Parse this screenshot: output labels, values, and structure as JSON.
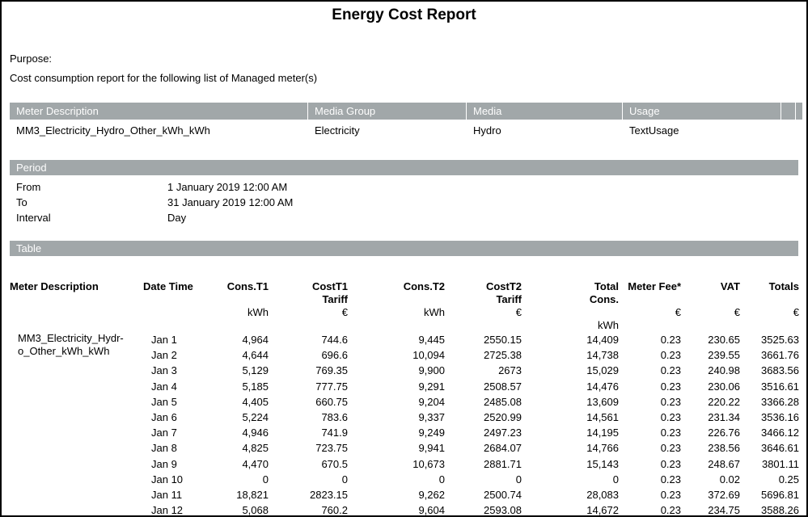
{
  "page": {
    "title": "Energy Cost Report"
  },
  "purpose": {
    "label": "Purpose:",
    "text": "Cost consumption report for the following list of Managed meter(s)"
  },
  "meters": {
    "columns": [
      "Meter Description",
      "Media Group",
      "Media",
      "Usage"
    ],
    "row": {
      "description": "MM3_Electricity_Hydro_Other_kWh_kWh",
      "media_group": "Electricity",
      "media": "Hydro",
      "usage": "TextUsage"
    }
  },
  "period": {
    "section_title": "Period",
    "rows": [
      {
        "label": "From",
        "value": "1 January 2019 12:00 AM"
      },
      {
        "label": "To",
        "value": "31 January 2019 12:00 AM"
      },
      {
        "label": "Interval",
        "value": "Day"
      }
    ]
  },
  "report_table": {
    "section_title": "Table",
    "columns": [
      {
        "label": "Meter Description",
        "unit": "",
        "unit2": ""
      },
      {
        "label": "Date Time",
        "unit": "",
        "unit2": ""
      },
      {
        "label": "Cons.T1",
        "unit": "kWh",
        "unit2": ""
      },
      {
        "label": "CostT1\nTariff",
        "unit": "€",
        "unit2": ""
      },
      {
        "label": "Cons.T2",
        "unit": "kWh",
        "unit2": ""
      },
      {
        "label": "CostT2\nTariff",
        "unit": "€",
        "unit2": ""
      },
      {
        "label": "Total\nCons.",
        "unit": "",
        "unit2": "kWh"
      },
      {
        "label": "Meter Fee*",
        "unit": "€",
        "unit2": ""
      },
      {
        "label": "VAT",
        "unit": "€",
        "unit2": ""
      },
      {
        "label": "Totals",
        "unit": "€",
        "unit2": ""
      }
    ],
    "rows": [
      [
        "MM3_Electricity_Hydr-\no_Other_kWh_kWh",
        "Jan 1",
        "4,964",
        "744.6",
        "9,445",
        "2550.15",
        "14,409",
        "0.23",
        "230.65",
        "3525.63"
      ],
      [
        "",
        "Jan 2",
        "4,644",
        "696.6",
        "10,094",
        "2725.38",
        "14,738",
        "0.23",
        "239.55",
        "3661.76"
      ],
      [
        "",
        "Jan 3",
        "5,129",
        "769.35",
        "9,900",
        "2673",
        "15,029",
        "0.23",
        "240.98",
        "3683.56"
      ],
      [
        "",
        "Jan 4",
        "5,185",
        "777.75",
        "9,291",
        "2508.57",
        "14,476",
        "0.23",
        "230.06",
        "3516.61"
      ],
      [
        "",
        "Jan 5",
        "4,405",
        "660.75",
        "9,204",
        "2485.08",
        "13,609",
        "0.23",
        "220.22",
        "3366.28"
      ],
      [
        "",
        "Jan 6",
        "5,224",
        "783.6",
        "9,337",
        "2520.99",
        "14,561",
        "0.23",
        "231.34",
        "3536.16"
      ],
      [
        "",
        "Jan 7",
        "4,946",
        "741.9",
        "9,249",
        "2497.23",
        "14,195",
        "0.23",
        "226.76",
        "3466.12"
      ],
      [
        "",
        "Jan 8",
        "4,825",
        "723.75",
        "9,941",
        "2684.07",
        "14,766",
        "0.23",
        "238.56",
        "3646.61"
      ],
      [
        "",
        "Jan 9",
        "4,470",
        "670.5",
        "10,673",
        "2881.71",
        "15,143",
        "0.23",
        "248.67",
        "3801.11"
      ],
      [
        "",
        "Jan 10",
        "0",
        "0",
        "0",
        "0",
        "0",
        "0.23",
        "0.02",
        "0.25"
      ],
      [
        "",
        "Jan 11",
        "18,821",
        "2823.15",
        "9,262",
        "2500.74",
        "28,083",
        "0.23",
        "372.69",
        "5696.81"
      ],
      [
        "",
        "Jan 12",
        "5,068",
        "760.2",
        "9,604",
        "2593.08",
        "14,672",
        "0.23",
        "234.75",
        "3588.26"
      ]
    ]
  },
  "colors": {
    "section_bar": "#a1a7a9",
    "bar_text": "#fdfdfd"
  }
}
